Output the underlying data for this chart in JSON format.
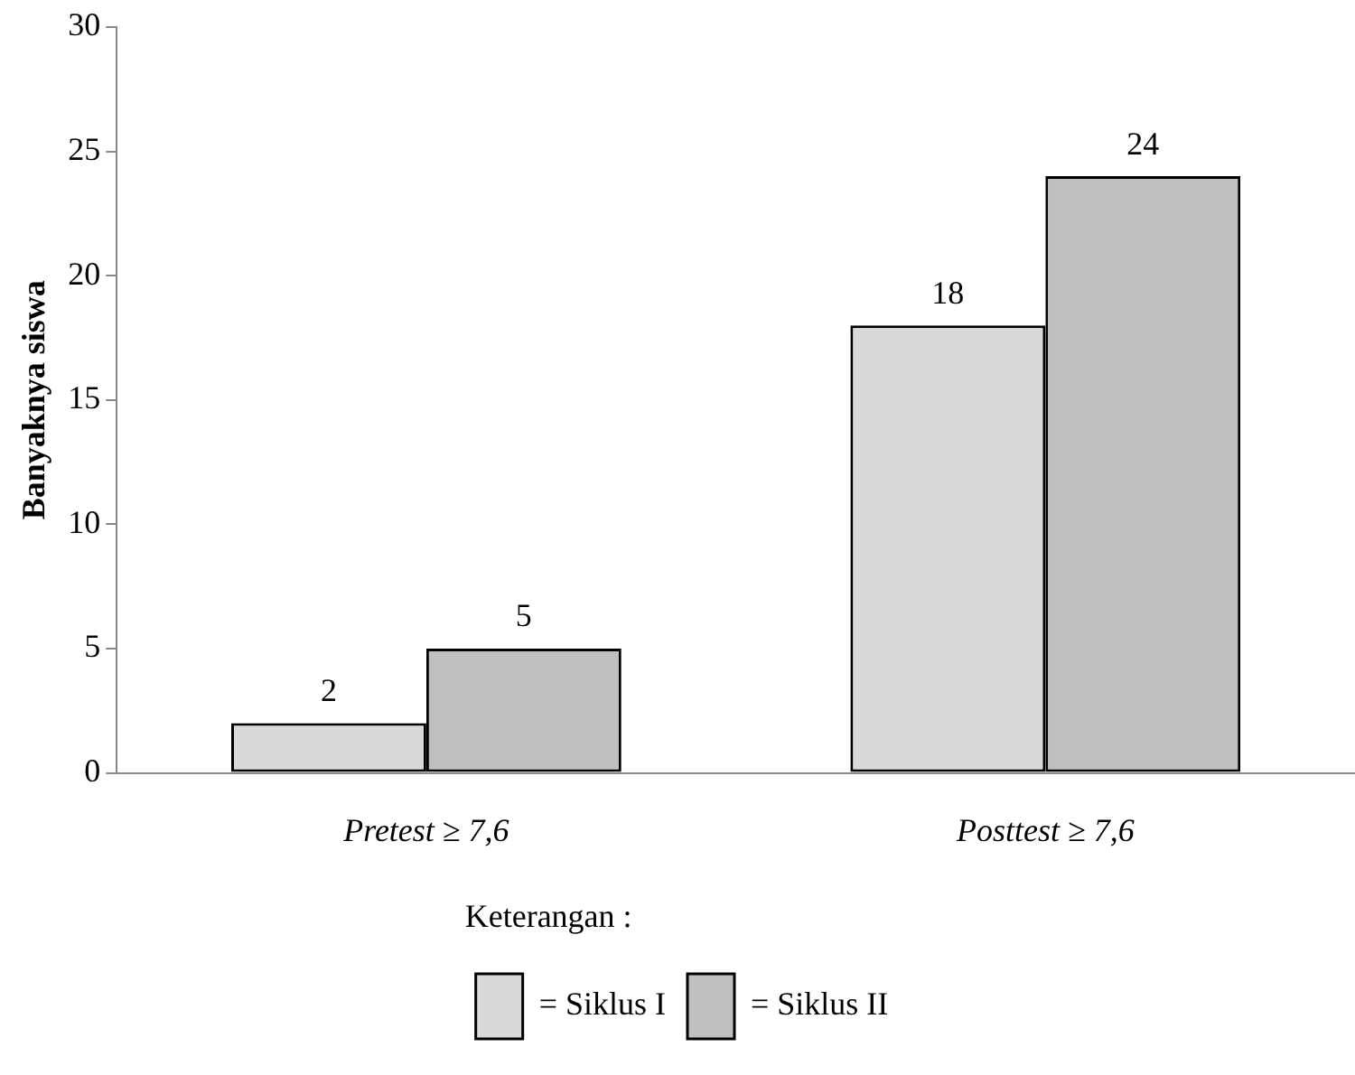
{
  "chart_data": {
    "type": "bar",
    "ylabel": "Banyaknya siswa",
    "legend_title": "Keterangan :",
    "categories": [
      "Pretest ≥ 7,6",
      "Posttest ≥ 7,6"
    ],
    "series": [
      {
        "name": "= Siklus I",
        "color": "#d9d9d9",
        "values": [
          2,
          18
        ]
      },
      {
        "name": "= Siklus II",
        "color": "#bfbfbf",
        "values": [
          5,
          24
        ]
      }
    ],
    "ylim": [
      0,
      30
    ],
    "yticks": [
      0,
      5,
      10,
      15,
      20,
      25,
      30
    ],
    "grid": false,
    "legend": "bottom",
    "data_labels": true
  }
}
